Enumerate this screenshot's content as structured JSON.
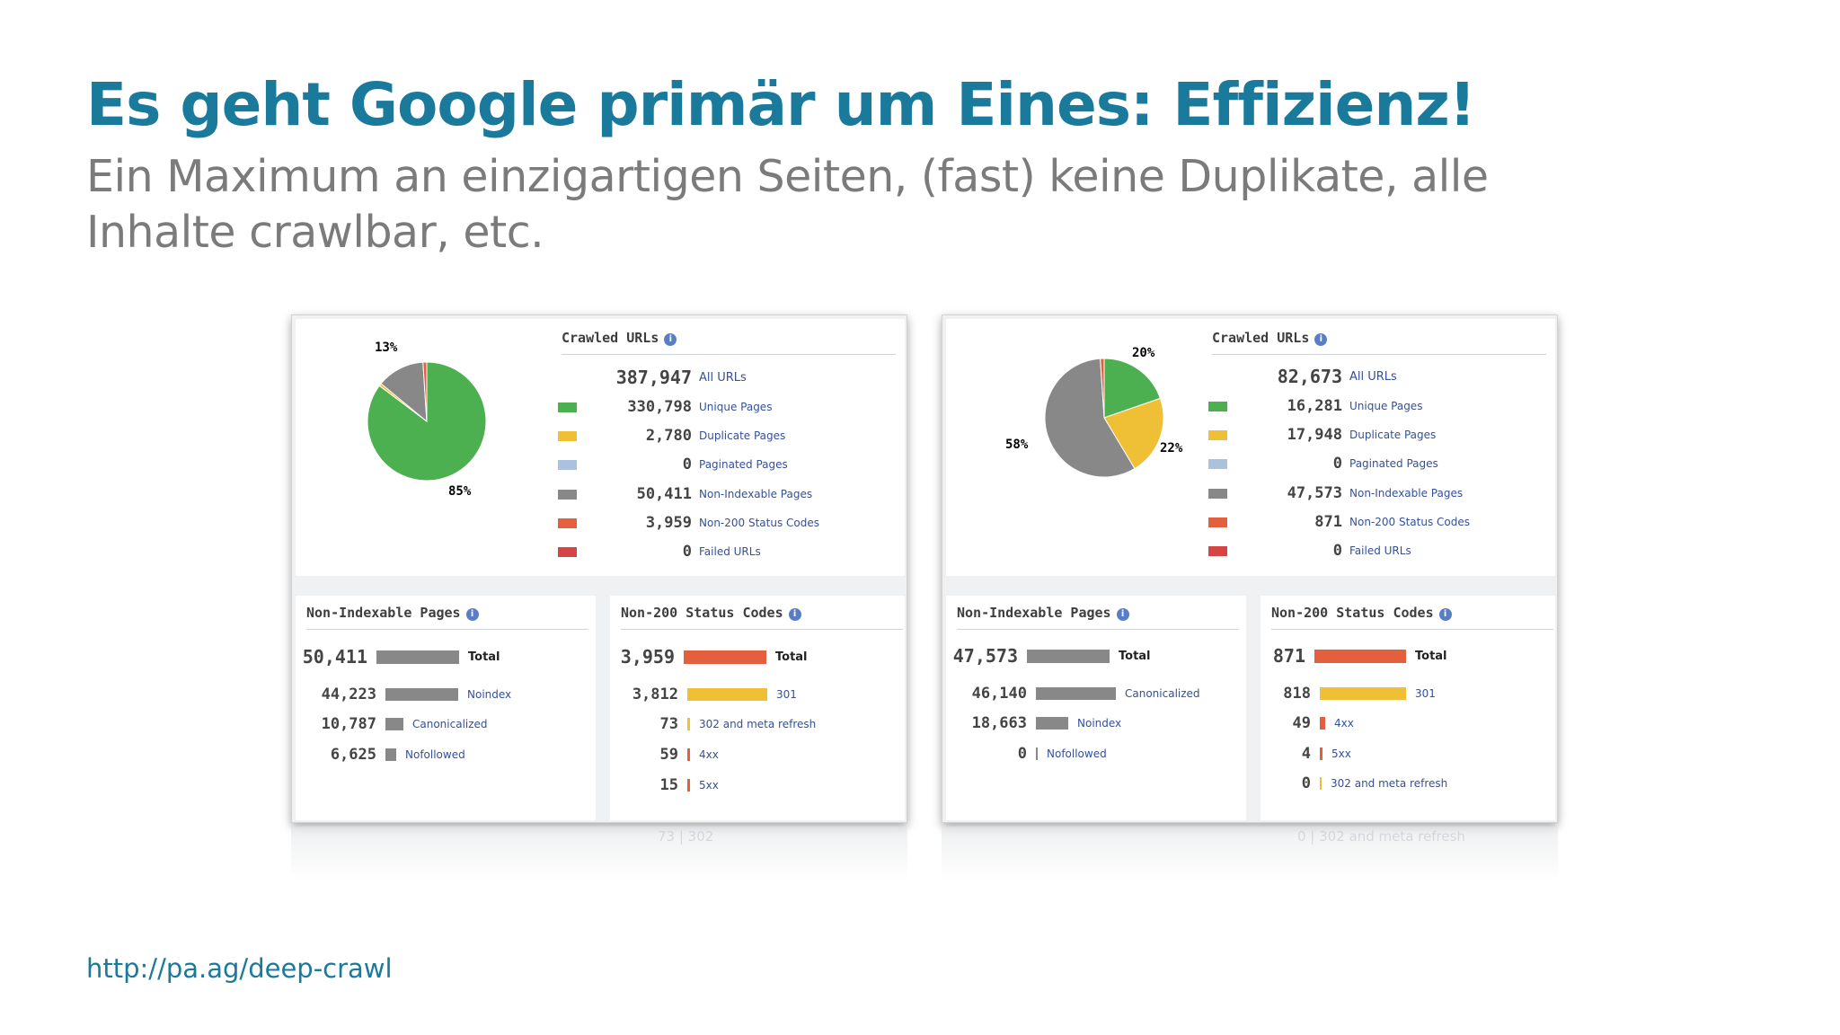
{
  "slide": {
    "title": "Es geht Google primär um Eines: Effizienz!",
    "subtitle": "Ein Maximum an einzigartigen Seiten, (fast) keine Duplikate, alle Inhalte crawlbar, etc.",
    "link": "http://pa.ag/deep-crawl"
  },
  "colors": {
    "title": "#1a7a9c",
    "subtitle": "#7b7b7b",
    "unique": "#4caf50",
    "duplicate": "#efc035",
    "paginated": "#abc1e0",
    "non_indexable": "#888888",
    "non200": "#e35f3d",
    "failed": "#d64545",
    "label_blue": "#34509a"
  },
  "reports": [
    {
      "crawled": {
        "header": "Crawled URLs",
        "total": {
          "value": "387,947",
          "label": "All URLs"
        },
        "rows": [
          {
            "value": "330,798",
            "label": "Unique Pages",
            "color": "#4caf50"
          },
          {
            "value": "2,780",
            "label": "Duplicate Pages",
            "color": "#efc035"
          },
          {
            "value": "0",
            "label": "Paginated Pages",
            "color": "#abc1e0"
          },
          {
            "value": "50,411",
            "label": "Non-Indexable Pages",
            "color": "#888888"
          },
          {
            "value": "3,959",
            "label": "Non-200 Status Codes",
            "color": "#e35f3d"
          },
          {
            "value": "0",
            "label": "Failed URLs",
            "color": "#d64545"
          }
        ],
        "pie": {
          "slices": [
            {
              "name": "Unique Pages",
              "value": 330798,
              "color": "#4caf50"
            },
            {
              "name": "Duplicate Pages",
              "value": 2780,
              "color": "#efc035"
            },
            {
              "name": "Non-Indexable Pages",
              "value": 50411,
              "color": "#888888"
            },
            {
              "name": "Non-200 Status Codes",
              "value": 3959,
              "color": "#e35f3d"
            }
          ],
          "labels": [
            {
              "text": "85%",
              "color": "#4caf50"
            },
            {
              "text": "13%",
              "color": "#777777"
            }
          ]
        }
      },
      "non_indexable": {
        "header": "Non-Indexable Pages",
        "total": {
          "value": "50,411",
          "label": "Total",
          "fraction": 1.0,
          "color": "#888888"
        },
        "rows": [
          {
            "value": "44,223",
            "label": "Noindex",
            "fraction": 0.877,
            "color": "#888888"
          },
          {
            "value": "10,787",
            "label": "Canonicalized",
            "fraction": 0.214,
            "color": "#888888"
          },
          {
            "value": "6,625",
            "label": "Nofollowed",
            "fraction": 0.131,
            "color": "#888888"
          }
        ]
      },
      "non200": {
        "header": "Non-200 Status Codes",
        "total": {
          "value": "3,959",
          "label": "Total",
          "fraction": 1.0,
          "color": "#e35f3d"
        },
        "rows": [
          {
            "value": "3,812",
            "label": "301",
            "fraction": 0.963,
            "color": "#efc035"
          },
          {
            "value": "73",
            "label": "302 and meta refresh",
            "fraction": 0.018,
            "color": "#efc035"
          },
          {
            "value": "59",
            "label": "4xx",
            "fraction": 0.015,
            "color": "#e35f3d"
          },
          {
            "value": "15",
            "label": "5xx",
            "fraction": 0.004,
            "color": "#e35f3d"
          }
        ],
        "reflection": "73 | 302"
      }
    },
    {
      "crawled": {
        "header": "Crawled URLs",
        "total": {
          "value": "82,673",
          "label": "All URLs"
        },
        "rows": [
          {
            "value": "16,281",
            "label": "Unique Pages",
            "color": "#4caf50"
          },
          {
            "value": "17,948",
            "label": "Duplicate Pages",
            "color": "#efc035"
          },
          {
            "value": "0",
            "label": "Paginated Pages",
            "color": "#abc1e0"
          },
          {
            "value": "47,573",
            "label": "Non-Indexable Pages",
            "color": "#888888"
          },
          {
            "value": "871",
            "label": "Non-200 Status Codes",
            "color": "#e35f3d"
          },
          {
            "value": "0",
            "label": "Failed URLs",
            "color": "#d64545"
          }
        ],
        "pie": {
          "slices": [
            {
              "name": "Unique Pages",
              "value": 16281,
              "color": "#4caf50"
            },
            {
              "name": "Duplicate Pages",
              "value": 17948,
              "color": "#efc035"
            },
            {
              "name": "Non-Indexable Pages",
              "value": 47573,
              "color": "#888888"
            },
            {
              "name": "Non-200 Status Codes",
              "value": 871,
              "color": "#e35f3d"
            }
          ],
          "labels": [
            {
              "text": "20%",
              "color": "#4caf50"
            },
            {
              "text": "22%",
              "color": "#efc035"
            },
            {
              "text": "58%",
              "color": "#777777"
            }
          ]
        }
      },
      "non_indexable": {
        "header": "Non-Indexable Pages",
        "total": {
          "value": "47,573",
          "label": "Total",
          "fraction": 1.0,
          "color": "#888888"
        },
        "rows": [
          {
            "value": "46,140",
            "label": "Canonicalized",
            "fraction": 0.97,
            "color": "#888888"
          },
          {
            "value": "18,663",
            "label": "Noindex",
            "fraction": 0.392,
            "color": "#888888"
          },
          {
            "value": "0",
            "label": "Nofollowed",
            "fraction": 0.0,
            "color": "#888888"
          }
        ]
      },
      "non200": {
        "header": "Non-200 Status Codes",
        "total": {
          "value": "871",
          "label": "Total",
          "fraction": 1.0,
          "color": "#e35f3d"
        },
        "rows": [
          {
            "value": "818",
            "label": "301",
            "fraction": 0.939,
            "color": "#efc035"
          },
          {
            "value": "49",
            "label": "4xx",
            "fraction": 0.056,
            "color": "#e35f3d"
          },
          {
            "value": "4",
            "label": "5xx",
            "fraction": 0.005,
            "color": "#e35f3d"
          },
          {
            "value": "0",
            "label": "302 and meta refresh",
            "fraction": 0.0,
            "color": "#efc035"
          }
        ],
        "reflection": "0 | 302 and meta refresh"
      }
    }
  ]
}
